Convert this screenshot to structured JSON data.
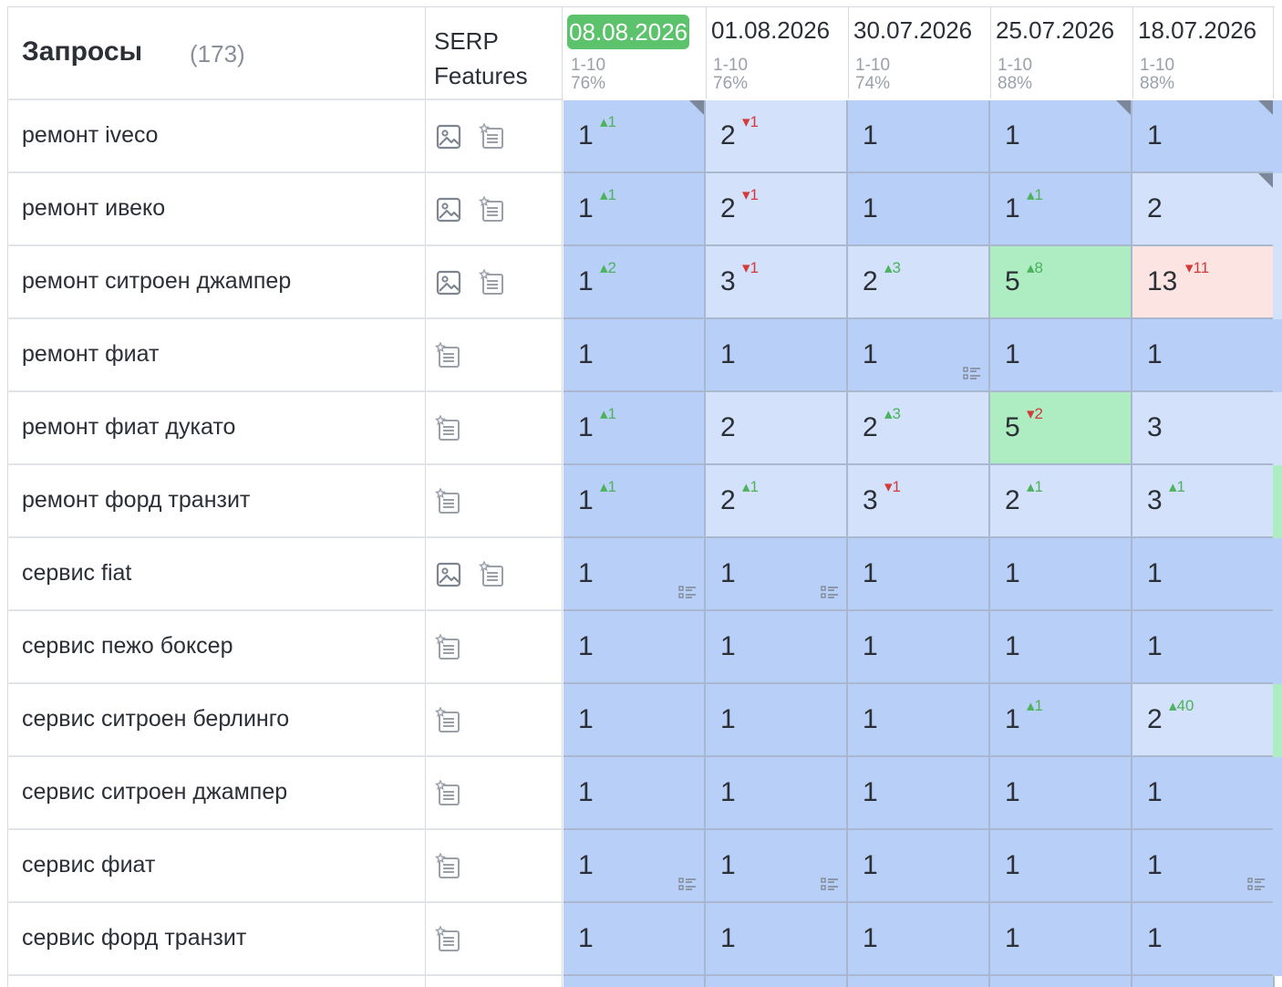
{
  "header": {
    "title": "Запросы",
    "count": "(173)",
    "serp_line1": "SERP",
    "serp_line2": "Features",
    "dates": [
      {
        "label": "08.08.2026",
        "range": "1-10",
        "pct": "76%",
        "active": true
      },
      {
        "label": "01.08.2026",
        "range": "1-10",
        "pct": "76%"
      },
      {
        "label": "30.07.2026",
        "range": "1-10",
        "pct": "74%"
      },
      {
        "label": "25.07.2026",
        "range": "1-10",
        "pct": "88%"
      },
      {
        "label": "18.07.2026",
        "range": "1-10",
        "pct": "88%"
      }
    ]
  },
  "colors": {
    "top": "#b8cff7",
    "light": "#d3e1fb",
    "green": "#aeedc1",
    "red": "#fbe4e1",
    "active_date": "#5cc26b"
  },
  "rows": [
    {
      "query": "ремонт iveco",
      "serp": [
        "image-icon",
        "snippet-icon"
      ],
      "cells": [
        {
          "v": "1",
          "ch": "1",
          "dir": "up",
          "bg": "top",
          "corner": true
        },
        {
          "v": "2",
          "ch": "1",
          "dir": "down",
          "bg": "light"
        },
        {
          "v": "1",
          "bg": "top"
        },
        {
          "v": "1",
          "bg": "top",
          "corner": true
        },
        {
          "v": "1",
          "bg": "top",
          "corner": true
        }
      ],
      "edge": "top"
    },
    {
      "query": "ремонт ивеко",
      "serp": [
        "image-icon",
        "snippet-icon"
      ],
      "cells": [
        {
          "v": "1",
          "ch": "1",
          "dir": "up",
          "bg": "top"
        },
        {
          "v": "2",
          "ch": "1",
          "dir": "down",
          "bg": "light"
        },
        {
          "v": "1",
          "bg": "top"
        },
        {
          "v": "1",
          "ch": "1",
          "dir": "up",
          "bg": "top"
        },
        {
          "v": "2",
          "bg": "light",
          "corner": true
        }
      ],
      "edge": "light"
    },
    {
      "query": "ремонт ситроен джампер",
      "serp": [
        "image-icon",
        "snippet-icon"
      ],
      "cells": [
        {
          "v": "1",
          "ch": "2",
          "dir": "up",
          "bg": "top"
        },
        {
          "v": "3",
          "ch": "1",
          "dir": "down",
          "bg": "light"
        },
        {
          "v": "2",
          "ch": "3",
          "dir": "up",
          "bg": "light"
        },
        {
          "v": "5",
          "ch": "8",
          "dir": "up",
          "bg": "green"
        },
        {
          "v": "13",
          "ch": "11",
          "dir": "down",
          "bg": "red"
        }
      ],
      "edge": "light"
    },
    {
      "query": "ремонт фиат",
      "serp": [
        "snippet-icon"
      ],
      "cells": [
        {
          "v": "1",
          "bg": "top"
        },
        {
          "v": "1",
          "bg": "top"
        },
        {
          "v": "1",
          "bg": "top",
          "snippet": true
        },
        {
          "v": "1",
          "bg": "top"
        },
        {
          "v": "1",
          "bg": "top"
        }
      ],
      "edge": "top"
    },
    {
      "query": "ремонт фиат дукато",
      "serp": [
        "snippet-icon"
      ],
      "cells": [
        {
          "v": "1",
          "ch": "1",
          "dir": "up",
          "bg": "top"
        },
        {
          "v": "2",
          "bg": "light"
        },
        {
          "v": "2",
          "ch": "3",
          "dir": "up",
          "bg": "light"
        },
        {
          "v": "5",
          "ch": "2",
          "dir": "down",
          "bg": "green"
        },
        {
          "v": "3",
          "bg": "light"
        }
      ],
      "edge": "light"
    },
    {
      "query": "ремонт форд транзит",
      "serp": [
        "snippet-icon"
      ],
      "cells": [
        {
          "v": "1",
          "ch": "1",
          "dir": "up",
          "bg": "top"
        },
        {
          "v": "2",
          "ch": "1",
          "dir": "up",
          "bg": "light"
        },
        {
          "v": "3",
          "ch": "1",
          "dir": "down",
          "bg": "light"
        },
        {
          "v": "2",
          "ch": "1",
          "dir": "up",
          "bg": "light"
        },
        {
          "v": "3",
          "ch": "1",
          "dir": "up",
          "bg": "light"
        }
      ],
      "edge": "green"
    },
    {
      "query": "сервис fiat",
      "serp": [
        "image-icon",
        "snippet-icon"
      ],
      "cells": [
        {
          "v": "1",
          "bg": "top",
          "snippet": true
        },
        {
          "v": "1",
          "bg": "top",
          "snippet": true
        },
        {
          "v": "1",
          "bg": "top"
        },
        {
          "v": "1",
          "bg": "top"
        },
        {
          "v": "1",
          "bg": "top"
        }
      ],
      "edge": "top"
    },
    {
      "query": "сервис пежо боксер",
      "serp": [
        "snippet-icon"
      ],
      "cells": [
        {
          "v": "1",
          "bg": "top"
        },
        {
          "v": "1",
          "bg": "top"
        },
        {
          "v": "1",
          "bg": "top"
        },
        {
          "v": "1",
          "bg": "top"
        },
        {
          "v": "1",
          "bg": "top"
        }
      ],
      "edge": "top"
    },
    {
      "query": "сервис ситроен берлинго",
      "serp": [
        "snippet-icon"
      ],
      "cells": [
        {
          "v": "1",
          "bg": "top"
        },
        {
          "v": "1",
          "bg": "top"
        },
        {
          "v": "1",
          "bg": "top"
        },
        {
          "v": "1",
          "ch": "1",
          "dir": "up",
          "bg": "top"
        },
        {
          "v": "2",
          "ch": "40",
          "dir": "up",
          "bg": "light"
        }
      ],
      "edge": "green"
    },
    {
      "query": "сервис ситроен джампер",
      "serp": [
        "snippet-icon"
      ],
      "cells": [
        {
          "v": "1",
          "bg": "top"
        },
        {
          "v": "1",
          "bg": "top"
        },
        {
          "v": "1",
          "bg": "top"
        },
        {
          "v": "1",
          "bg": "top"
        },
        {
          "v": "1",
          "bg": "top"
        }
      ],
      "edge": "top"
    },
    {
      "query": "сервис фиат",
      "serp": [
        "snippet-icon"
      ],
      "cells": [
        {
          "v": "1",
          "bg": "top",
          "snippet": true
        },
        {
          "v": "1",
          "bg": "top",
          "snippet": true
        },
        {
          "v": "1",
          "bg": "top"
        },
        {
          "v": "1",
          "bg": "top"
        },
        {
          "v": "1",
          "bg": "top",
          "snippet": true
        }
      ],
      "edge": "top"
    },
    {
      "query": "сервис форд транзит",
      "serp": [
        "snippet-icon"
      ],
      "cells": [
        {
          "v": "1",
          "bg": "top"
        },
        {
          "v": "1",
          "bg": "top"
        },
        {
          "v": "1",
          "bg": "top"
        },
        {
          "v": "1",
          "bg": "top"
        },
        {
          "v": "1",
          "bg": "top"
        }
      ],
      "edge": "top"
    }
  ]
}
